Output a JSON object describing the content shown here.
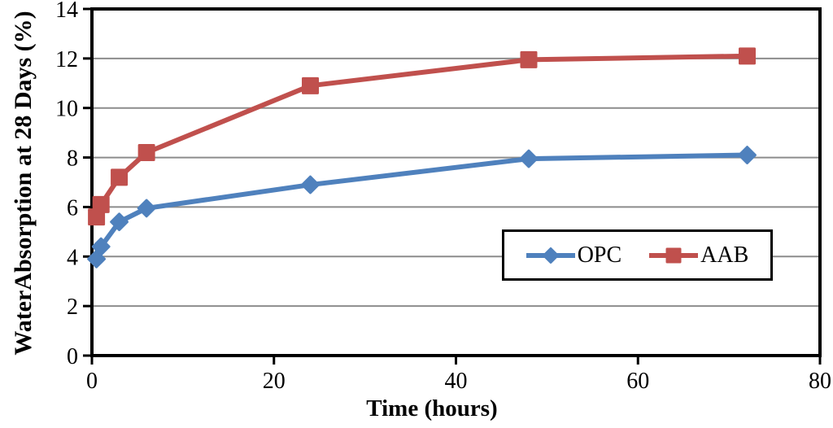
{
  "chart_data": {
    "type": "line",
    "title": "",
    "xlabel": "Time (hours)",
    "ylabel": "WaterAbsorption at 28 Days (%)",
    "x": [
      0.5,
      1,
      3,
      6,
      24,
      48,
      72
    ],
    "series": [
      {
        "name": "OPC",
        "color": "#4f81bd",
        "marker": "diamond",
        "values": [
          3.9,
          4.4,
          5.4,
          5.95,
          6.9,
          7.95,
          8.1
        ]
      },
      {
        "name": "AAB",
        "color": "#c0504d",
        "marker": "square",
        "values": [
          5.6,
          6.1,
          7.2,
          8.2,
          10.9,
          11.95,
          12.1
        ]
      }
    ],
    "xlim": [
      0,
      80
    ],
    "ylim": [
      0,
      14
    ],
    "x_ticks": [
      0,
      20,
      40,
      60,
      80
    ],
    "y_ticks": [
      0,
      2,
      4,
      6,
      8,
      10,
      12,
      14
    ],
    "grid": "horizontal",
    "gridline_color": "#8c8c8c",
    "axis_color": "#000000",
    "legend_position": "inside-right",
    "legend_entries": [
      "OPC",
      "AAB"
    ]
  }
}
